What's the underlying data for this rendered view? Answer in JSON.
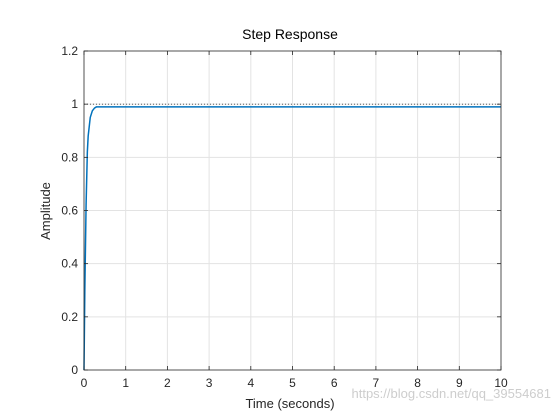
{
  "chart_data": {
    "type": "line",
    "title": "Step Response",
    "xlabel": "Time (seconds)",
    "ylabel": "Amplitude",
    "xlim": [
      0,
      10
    ],
    "ylim": [
      0,
      1.2
    ],
    "grid": true,
    "x_ticks": [
      0,
      1,
      2,
      3,
      4,
      5,
      6,
      7,
      8,
      9,
      10
    ],
    "x_tick_labels": [
      "0",
      "1",
      "2",
      "3",
      "4",
      "5",
      "6",
      "7",
      "8",
      "9",
      "10"
    ],
    "y_ticks": [
      0,
      0.2,
      0.4,
      0.6,
      0.8,
      1,
      1.2
    ],
    "y_tick_labels": [
      "0",
      "0.2",
      "0.4",
      "0.6",
      "0.8",
      "1",
      "1.2"
    ],
    "series": [
      {
        "color": "#0072bd",
        "x": [
          0,
          0.02,
          0.05,
          0.08,
          0.1,
          0.15,
          0.2,
          0.25,
          0.3,
          0.4,
          0.5,
          0.7,
          1,
          2,
          4,
          6,
          8,
          10
        ],
        "y": [
          0,
          0.3,
          0.62,
          0.82,
          0.88,
          0.95,
          0.975,
          0.985,
          0.99,
          0.99,
          0.99,
          0.99,
          0.99,
          0.99,
          0.99,
          0.99,
          0.99,
          0.99
        ]
      }
    ],
    "reference_line": {
      "y": 1,
      "color": "#000000",
      "style": "dotted"
    }
  },
  "watermark": "https://blog.csdn.net/qq_39554681",
  "colors": {
    "axes_edge": "#262626",
    "grid": "#e3e3e3",
    "series": "#0072bd"
  }
}
